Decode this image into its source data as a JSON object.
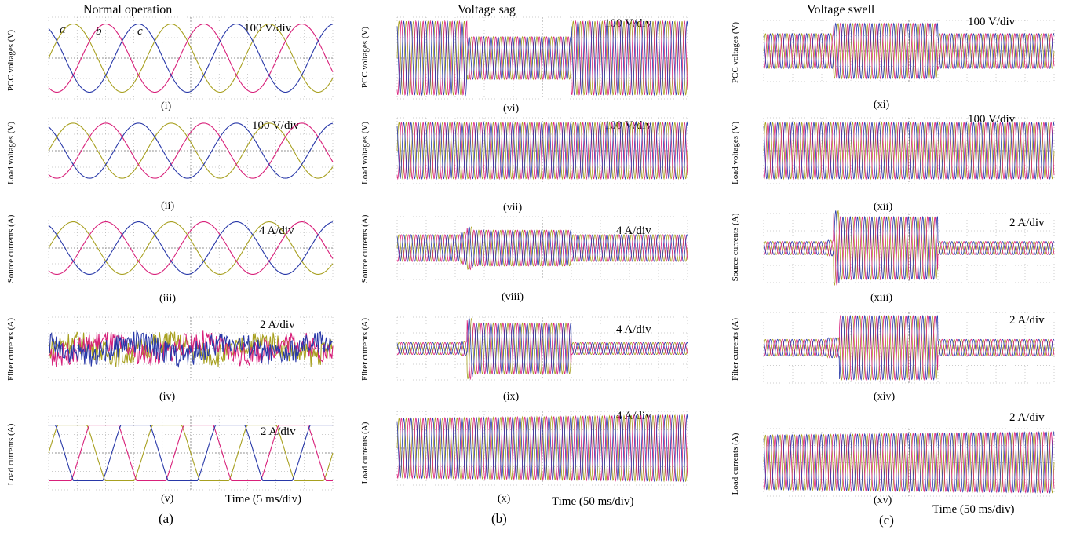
{
  "colors": {
    "phase_a": "#a8a020",
    "phase_b": "#d8207a",
    "phase_c": "#2838a8",
    "grid": "#9a9a9a"
  },
  "columns": [
    {
      "title": "Normal operation",
      "caption": "(a)",
      "time_label": "Time (5 ms/div)"
    },
    {
      "title": "Voltage sag",
      "caption": "(b)",
      "time_label": "Time (50 ms/div)"
    },
    {
      "title": "Voltage swell",
      "caption": "(c)",
      "time_label": "Time (50 ms/div)"
    }
  ],
  "phase_labels": [
    "a",
    "b",
    "c"
  ],
  "chart_data": [
    {
      "type": "line",
      "panel": "(i)",
      "ylabel": "PCC voltages (V)",
      "scale": "100 V/div",
      "series": [
        {
          "name": "a"
        },
        {
          "name": "b"
        },
        {
          "name": "c"
        }
      ]
    },
    {
      "type": "line",
      "panel": "(ii)",
      "ylabel": "Load voltages (V)",
      "scale": "100 V/div"
    },
    {
      "type": "line",
      "panel": "(iii)",
      "ylabel": "Source currents (A)",
      "scale": "4 A/div"
    },
    {
      "type": "line",
      "panel": "(iv)",
      "ylabel": "Filter currents (A)",
      "scale": "2 A/div"
    },
    {
      "type": "line",
      "panel": "(v)",
      "ylabel": "Load currents (A)",
      "scale": "2 A/div"
    },
    {
      "type": "line",
      "panel": "(vi)",
      "ylabel": "PCC voltages (V)",
      "scale": "100 V/div"
    },
    {
      "type": "line",
      "panel": "(vii)",
      "ylabel": "Load voltages (V)",
      "scale": "100 V/div"
    },
    {
      "type": "line",
      "panel": "(viii)",
      "ylabel": "Source currents (A)",
      "scale": "4 A/div"
    },
    {
      "type": "line",
      "panel": "(ix)",
      "ylabel": "Filter currents (A)",
      "scale": "4 A/div"
    },
    {
      "type": "line",
      "panel": "(x)",
      "ylabel": "Load currents (A)",
      "scale": "4 A/div"
    },
    {
      "type": "line",
      "panel": "(xi)",
      "ylabel": "PCC voltages (V)",
      "scale": "100 V/div"
    },
    {
      "type": "line",
      "panel": "(xii)",
      "ylabel": "Load voltages (V)",
      "scale": "100 V/div"
    },
    {
      "type": "line",
      "panel": "(xiii)",
      "ylabel": "Source currents (A)",
      "scale": "2 A/div"
    },
    {
      "type": "line",
      "panel": "(xiv)",
      "ylabel": "Filter currents (A)",
      "scale": "2 A/div"
    },
    {
      "type": "line",
      "panel": "(xv)",
      "ylabel": "Load currents (A)",
      "scale": "2 A/div"
    }
  ]
}
